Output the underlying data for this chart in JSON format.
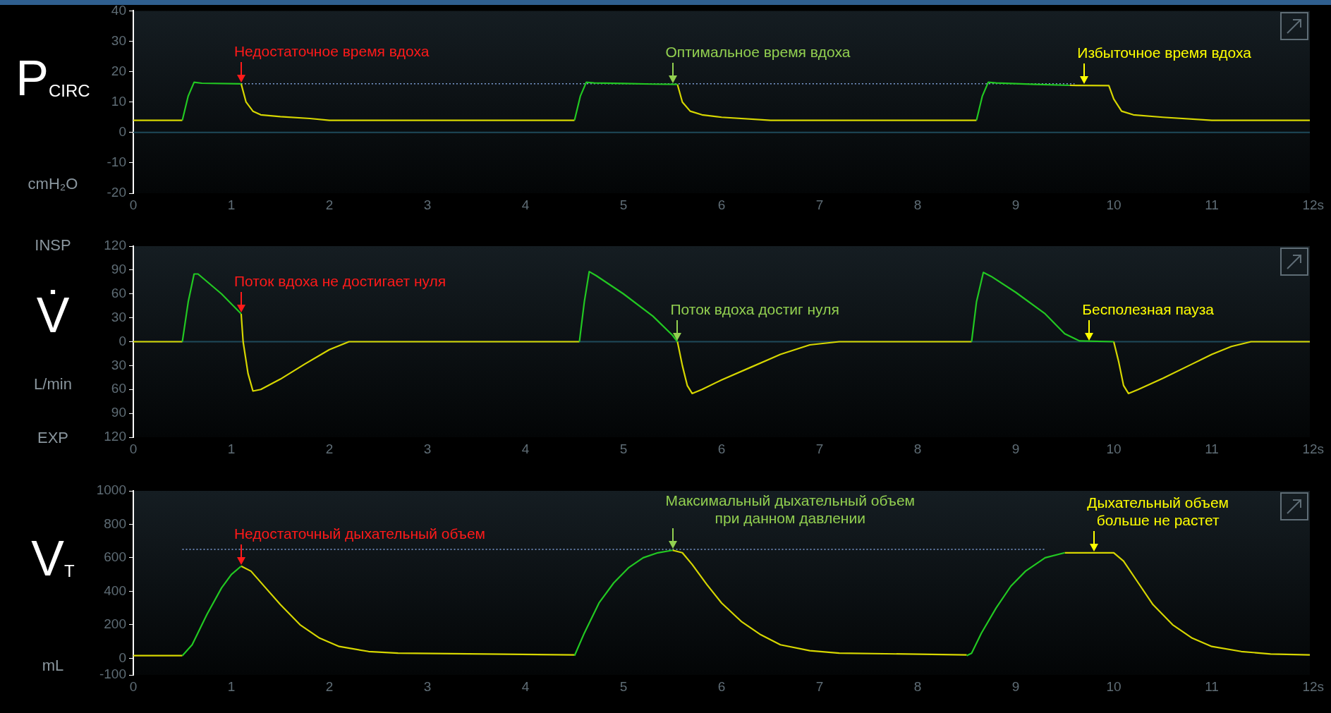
{
  "chart_data": [
    {
      "type": "line",
      "ylabel": "P$_{CIRC}$",
      "xlabel": "s",
      "marker": "none",
      "xlim": [
        0,
        12
      ],
      "xticks": [
        0,
        1,
        2,
        3,
        4,
        5,
        6,
        7,
        8,
        9,
        10,
        11,
        12
      ],
      "ylim": [
        -20,
        40
      ],
      "yticks": [
        -20,
        -10,
        0,
        10,
        20,
        30,
        40
      ],
      "ref_lines": [
        {
          "axis": "y",
          "value": 0,
          "color": "#1e4a5a"
        }
      ],
      "annotations": [
        "cmH₂O",
        {
          "text": "Недостаточное время вдоха",
          "x": 1.1,
          "y": 16
        },
        {
          "text": "Оптимальное время вдоха",
          "x": 5.5,
          "y": 15.8
        },
        {
          "text": "Избыточное время вдоха",
          "x": 9.7,
          "y": 15.5
        }
      ],
      "series": [
        {
          "color": "#22c822",
          "x": [
            0.5,
            0.56,
            0.62,
            0.7,
            1.1,
            2.5,
            4.5,
            4.56,
            4.62,
            4.7,
            5.0,
            5.3,
            5.55,
            7,
            8.6,
            8.66,
            8.72,
            8.8,
            9.2,
            9.55
          ],
          "values": [
            4,
            12,
            16.5,
            16.2,
            16,
            null,
            4,
            12,
            16.5,
            16.3,
            16.1,
            15.9,
            15.8,
            null,
            4,
            12,
            16.5,
            16.3,
            15.8,
            15.5
          ]
        },
        {
          "color": "#d6d600",
          "x": [
            0,
            0.5,
            0.55,
            1.1,
            1.15,
            1.22,
            1.3,
            1.5,
            1.8,
            2.0,
            4.5,
            4.55,
            5.55,
            5.6,
            5.68,
            5.8,
            6.0,
            6.5,
            8.6,
            8.65,
            9.55,
            9.95,
            10.0,
            10.08,
            10.2,
            10.5,
            11.0,
            12
          ],
          "values": [
            4,
            4,
            null,
            16,
            10,
            7,
            5.8,
            5.2,
            4.6,
            4,
            4,
            null,
            15.8,
            10,
            7,
            5.8,
            5,
            4,
            4,
            null,
            15.5,
            15.4,
            11,
            7,
            5.8,
            5,
            4,
            4
          ]
        },
        {
          "color": "#7f9fd8",
          "line_style": "dotted",
          "x": [
            1.1,
            9.6
          ],
          "values": [
            16,
            16
          ]
        }
      ]
    },
    {
      "type": "line",
      "ylabel": "V̇",
      "xlabel": "s",
      "marker": "none",
      "xlim": [
        0,
        12
      ],
      "xticks": [
        0,
        1,
        2,
        3,
        4,
        5,
        6,
        7,
        8,
        9,
        10,
        11,
        12
      ],
      "ylim": [
        -120,
        120
      ],
      "yticks": [
        {
          "value": -120,
          "label": "120"
        },
        {
          "value": -90,
          "label": "90"
        },
        {
          "value": -60,
          "label": "60"
        },
        {
          "value": -30,
          "label": "30"
        },
        0,
        30,
        60,
        90,
        120
      ],
      "ref_lines": [
        {
          "axis": "y",
          "value": 0,
          "color": "#1e4a5a"
        }
      ],
      "annotations": [
        "INSP",
        "L/min",
        "EXP",
        {
          "text": "Поток вдоха не достигает нуля",
          "x": 1.1,
          "y": 35
        },
        {
          "text": "Поток вдоха достиг нуля",
          "x": 5.55,
          "y": 0
        },
        {
          "text": "Бесполезная пауза",
          "x": 9.75,
          "y": 0
        }
      ],
      "series": [
        {
          "color": "#22c822",
          "x": [
            0.5,
            0.56,
            0.62,
            0.66,
            0.9,
            1.1,
            2.5,
            4.55,
            4.6,
            4.65,
            4.72,
            5.0,
            5.3,
            5.5,
            5.55,
            7,
            8.55,
            8.6,
            8.67,
            8.75,
            9.0,
            9.3,
            9.5,
            9.65,
            10.0
          ],
          "values": [
            0,
            50,
            85,
            85,
            60,
            35,
            null,
            0,
            50,
            88,
            83,
            60,
            32,
            8,
            0,
            null,
            0,
            50,
            87,
            82,
            62,
            35,
            10,
            1,
            0
          ]
        },
        {
          "color": "#d6d600",
          "x": [
            0,
            0.5,
            0.55,
            1.1,
            1.12,
            1.17,
            1.22,
            1.3,
            1.5,
            1.75,
            2.0,
            2.2,
            4.55,
            4.6,
            5.55,
            5.6,
            5.65,
            5.7,
            5.8,
            6.0,
            6.3,
            6.6,
            6.9,
            7.2,
            8.55,
            8.6,
            10.0,
            10.05,
            10.1,
            10.15,
            10.25,
            10.5,
            10.8,
            11.0,
            11.2,
            11.4,
            12
          ],
          "values": [
            0,
            0,
            null,
            35,
            0,
            -40,
            -62,
            -60,
            -47,
            -28,
            -10,
            0,
            0,
            null,
            0,
            -30,
            -55,
            -65,
            -60,
            -48,
            -32,
            -16,
            -4,
            0,
            0,
            null,
            0,
            -25,
            -55,
            -65,
            -60,
            -46,
            -28,
            -16,
            -6,
            0,
            0
          ]
        }
      ]
    },
    {
      "type": "line",
      "ylabel": "V$_{T}$",
      "xlabel": "s",
      "marker": "none",
      "xlim": [
        0,
        12
      ],
      "xticks": [
        0,
        1,
        2,
        3,
        4,
        5,
        6,
        7,
        8,
        9,
        10,
        11,
        12
      ],
      "ylim": [
        -100,
        1000
      ],
      "yticks": [
        -100,
        0,
        200,
        400,
        600,
        800,
        1000
      ],
      "annotations": [
        "mL",
        {
          "text": "Недостаточный дыхательный объем",
          "x": 1.1,
          "y": 550
        },
        {
          "text": "Максимальный дыхательный объем\nпри данном давлении",
          "x": 5.5,
          "y": 645
        },
        {
          "text": "Дыхательный объем\nбольше не растет",
          "x": 9.8,
          "y": 630
        }
      ],
      "series": [
        {
          "color": "#22c822",
          "x": [
            0.5,
            0.6,
            0.75,
            0.9,
            1.0,
            1.1,
            3,
            4.5,
            4.6,
            4.75,
            4.9,
            5.05,
            5.2,
            5.35,
            5.5,
            7,
            8.5,
            8.55,
            8.65,
            8.8,
            8.95,
            9.1,
            9.3,
            9.5
          ],
          "values": [
            15,
            80,
            260,
            420,
            500,
            550,
            null,
            15,
            150,
            330,
            450,
            540,
            600,
            630,
            645,
            null,
            15,
            30,
            150,
            300,
            430,
            520,
            600,
            630
          ]
        },
        {
          "color": "#d6d600",
          "x": [
            0,
            0.5,
            0.55,
            1.1,
            1.2,
            1.35,
            1.5,
            1.7,
            1.9,
            2.1,
            2.4,
            2.7,
            4.5,
            4.55,
            5.5,
            5.6,
            5.7,
            5.85,
            6.0,
            6.2,
            6.4,
            6.6,
            6.9,
            7.2,
            8.5,
            8.55,
            9.5,
            10.0,
            10.1,
            10.25,
            10.4,
            10.6,
            10.8,
            11.0,
            11.3,
            11.6,
            12
          ],
          "values": [
            15,
            15,
            null,
            550,
            520,
            420,
            320,
            200,
            120,
            70,
            40,
            30,
            20,
            null,
            645,
            630,
            560,
            440,
            330,
            220,
            140,
            80,
            45,
            30,
            20,
            null,
            630,
            630,
            580,
            450,
            320,
            200,
            120,
            70,
            40,
            25,
            20
          ]
        },
        {
          "color": "#7f9fd8",
          "line_style": "dotted",
          "x": [
            0.5,
            9.3
          ],
          "values": [
            650,
            650
          ]
        }
      ]
    }
  ]
}
